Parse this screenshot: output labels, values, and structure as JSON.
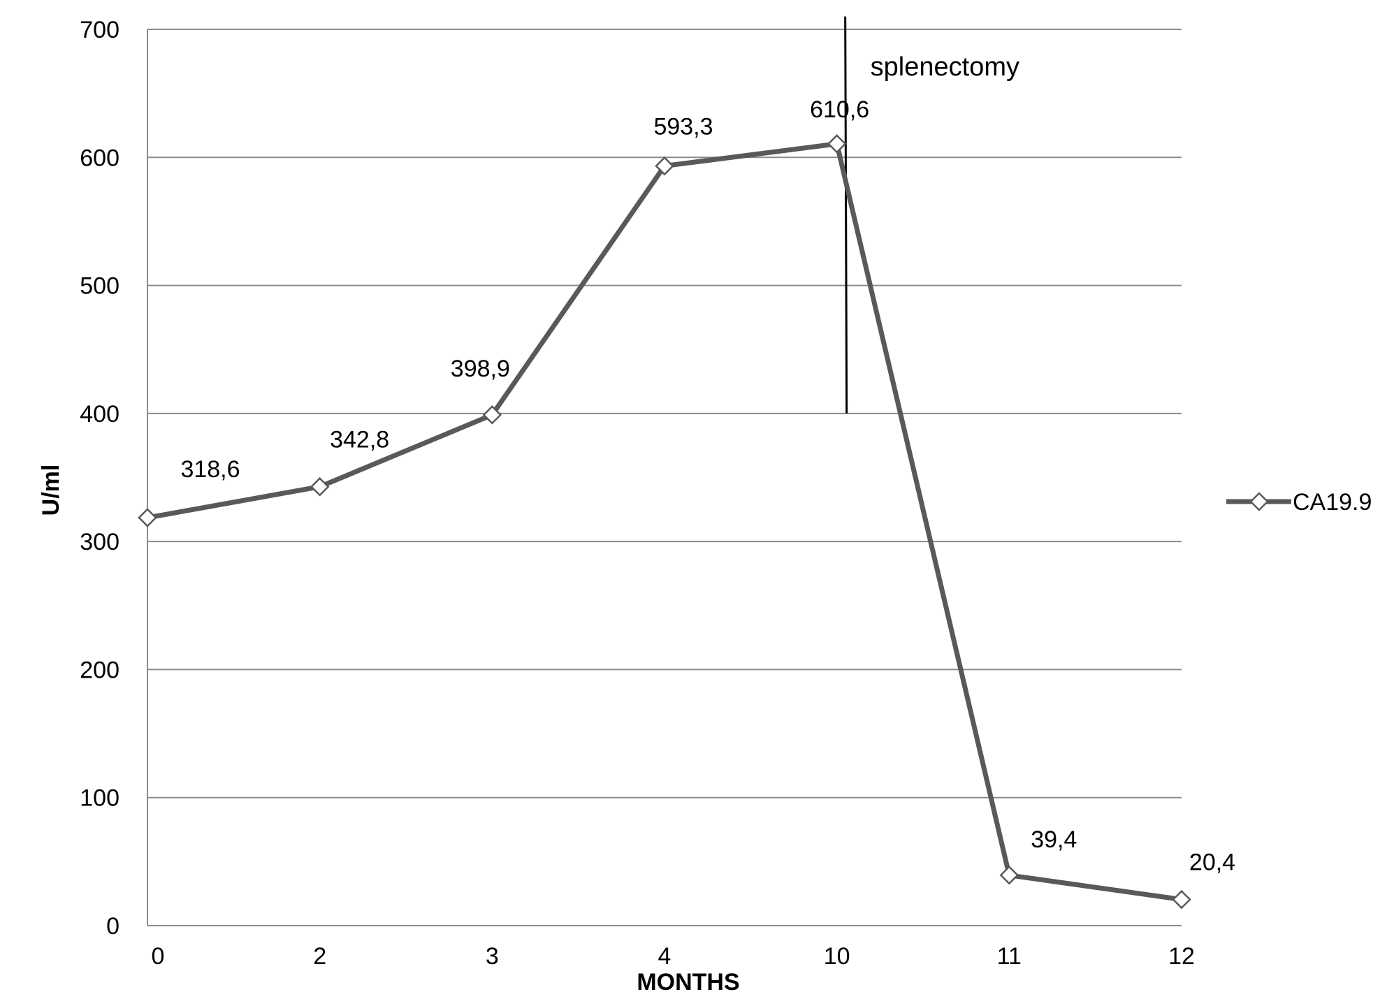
{
  "chart_data": {
    "type": "line",
    "title": "",
    "xlabel": "MONTHS",
    "ylabel": "U/ml",
    "categories": [
      "0",
      "2",
      "3",
      "4",
      "10",
      "11",
      "12"
    ],
    "series": [
      {
        "name": "CA19.9",
        "values": [
          318.6,
          342.8,
          398.9,
          593.3,
          610.6,
          39.4,
          20.4
        ],
        "data_labels": [
          "318,6",
          "342,8",
          "398,9",
          "593,3",
          "610,6",
          "39,4",
          "20,4"
        ]
      }
    ],
    "ylim": [
      0,
      700
    ],
    "yticks": [
      0,
      100,
      200,
      300,
      400,
      500,
      600,
      700
    ],
    "grid": "horizontal",
    "legend": "right",
    "annotations": [
      {
        "text": "splenectomy",
        "x_category": "10",
        "type": "vertical-line",
        "y_from": 400,
        "y_to": 710
      }
    ],
    "colors": {
      "series": "#595959",
      "grid": "#8c8c8c",
      "axis": "#8c8c8c",
      "annotation_line": "#000000"
    }
  }
}
